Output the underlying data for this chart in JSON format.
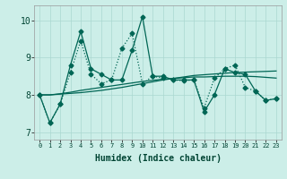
{
  "xlabel": "Humidex (Indice chaleur)",
  "ylabel": "",
  "background_color": "#cceee8",
  "grid_color": "#aad8d0",
  "line_color": "#006655",
  "xlim": [
    -0.5,
    23.5
  ],
  "ylim": [
    6.8,
    10.4
  ],
  "xticks": [
    0,
    1,
    2,
    3,
    4,
    5,
    6,
    7,
    8,
    9,
    10,
    11,
    12,
    13,
    14,
    15,
    16,
    17,
    18,
    19,
    20,
    21,
    22,
    23
  ],
  "yticks": [
    7,
    8,
    9,
    10
  ],
  "series": [
    [
      8.0,
      7.25,
      7.75,
      8.8,
      9.7,
      8.7,
      8.55,
      8.4,
      8.4,
      9.2,
      10.1,
      8.5,
      8.5,
      8.4,
      8.4,
      8.4,
      7.55,
      8.0,
      8.7,
      8.6,
      8.55,
      8.1,
      7.85,
      7.9
    ],
    [
      8.0,
      7.25,
      7.75,
      8.6,
      9.45,
      8.55,
      8.3,
      8.4,
      9.25,
      9.65,
      8.3,
      8.5,
      8.45,
      8.4,
      8.38,
      8.4,
      7.65,
      8.45,
      8.7,
      8.8,
      8.2,
      8.1,
      7.85,
      7.9
    ],
    [
      8.0,
      8.0,
      8.02,
      8.04,
      8.06,
      8.09,
      8.12,
      8.16,
      8.2,
      8.25,
      8.3,
      8.35,
      8.4,
      8.44,
      8.48,
      8.52,
      8.54,
      8.56,
      8.58,
      8.6,
      8.61,
      8.62,
      8.63,
      8.64
    ],
    [
      8.0,
      8.0,
      8.03,
      8.07,
      8.12,
      8.16,
      8.2,
      8.24,
      8.28,
      8.32,
      8.36,
      8.39,
      8.42,
      8.44,
      8.46,
      8.48,
      8.48,
      8.49,
      8.5,
      8.5,
      8.5,
      8.49,
      8.47,
      8.45
    ]
  ],
  "series_styles": [
    {
      "linestyle": "-",
      "marker": "D",
      "markersize": 2.5,
      "linewidth": 0.9
    },
    {
      "linestyle": ":",
      "marker": "D",
      "markersize": 2.5,
      "linewidth": 0.9
    },
    {
      "linestyle": "-",
      "marker": null,
      "markersize": 0,
      "linewidth": 0.9
    },
    {
      "linestyle": "-",
      "marker": null,
      "markersize": 0,
      "linewidth": 0.9
    }
  ]
}
